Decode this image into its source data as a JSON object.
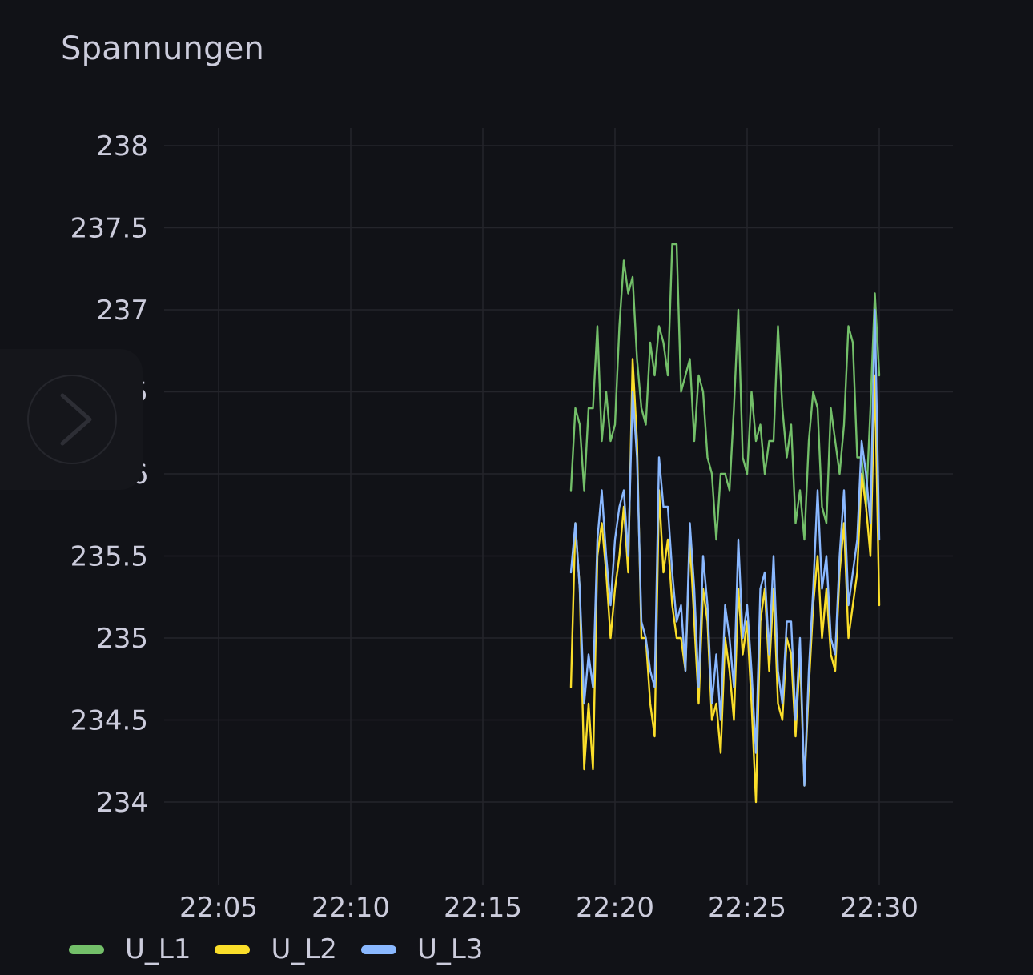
{
  "panel": {
    "title": "Spannungen"
  },
  "colors": {
    "background": "#111217",
    "grid": "#24252b",
    "text": "#ccccdc"
  },
  "nav": {
    "icon": "chevron-right-icon"
  },
  "chart_data": {
    "type": "line",
    "title": "Spannungen",
    "xlabel": "",
    "ylabel": "",
    "x_ticks": [
      "22:05",
      "22:10",
      "22:15",
      "22:20",
      "22:25",
      "22:30"
    ],
    "x_range": [
      "22:02:05",
      "22:32:47"
    ],
    "y_ticks": [
      "234",
      "234.5",
      "235",
      "235.5",
      "236",
      "236.5",
      "237",
      "237.5",
      "238"
    ],
    "ylim": [
      233.5,
      238
    ],
    "grid": true,
    "legend_position": "bottom-left",
    "series": [
      {
        "name": "U_L1",
        "color": "#73bf69",
        "x": [
          "22:18:20",
          "22:18:30",
          "22:18:40",
          "22:18:50",
          "22:19:00",
          "22:19:10",
          "22:19:20",
          "22:19:30",
          "22:19:40",
          "22:19:50",
          "22:20:00",
          "22:20:10",
          "22:20:20",
          "22:20:30",
          "22:20:40",
          "22:20:50",
          "22:21:00",
          "22:21:10",
          "22:21:20",
          "22:21:30",
          "22:21:40",
          "22:21:50",
          "22:22:00",
          "22:22:10",
          "22:22:20",
          "22:22:30",
          "22:22:40",
          "22:22:50",
          "22:23:00",
          "22:23:10",
          "22:23:20",
          "22:23:30",
          "22:23:40",
          "22:23:50",
          "22:24:00",
          "22:24:10",
          "22:24:20",
          "22:24:30",
          "22:24:40",
          "22:24:50",
          "22:25:00",
          "22:25:10",
          "22:25:20",
          "22:25:30",
          "22:25:40",
          "22:25:50",
          "22:26:00",
          "22:26:10",
          "22:26:20",
          "22:26:30",
          "22:26:40",
          "22:26:50",
          "22:27:00",
          "22:27:10",
          "22:27:20",
          "22:27:30",
          "22:27:40",
          "22:27:50",
          "22:28:00",
          "22:28:10",
          "22:28:20",
          "22:28:30",
          "22:28:40",
          "22:28:50",
          "22:29:00",
          "22:29:10",
          "22:29:20",
          "22:29:30",
          "22:29:40",
          "22:29:50",
          "22:30:00"
        ],
        "values": [
          235.9,
          236.4,
          236.3,
          235.9,
          236.4,
          236.4,
          236.9,
          236.2,
          236.5,
          236.2,
          236.3,
          236.9,
          237.3,
          237.1,
          237.2,
          236.7,
          236.4,
          236.3,
          236.8,
          236.6,
          236.9,
          236.8,
          236.6,
          237.4,
          237.4,
          236.5,
          236.6,
          236.7,
          236.2,
          236.6,
          236.5,
          236.1,
          236.0,
          235.6,
          236.0,
          236.0,
          235.9,
          236.4,
          237.0,
          236.1,
          236.0,
          236.5,
          236.2,
          236.3,
          236.0,
          236.2,
          236.2,
          236.9,
          236.4,
          236.1,
          236.3,
          235.7,
          235.9,
          235.6,
          236.2,
          236.5,
          236.4,
          235.8,
          235.7,
          236.4,
          236.2,
          236.0,
          236.3,
          236.9,
          236.8,
          236.1,
          236.1,
          235.8,
          236.4,
          237.1,
          236.6
        ],
        "note_values_approx": true
      },
      {
        "name": "U_L2",
        "color": "#fade2a",
        "x": [
          "22:18:20",
          "22:18:30",
          "22:18:40",
          "22:18:50",
          "22:19:00",
          "22:19:10",
          "22:19:20",
          "22:19:30",
          "22:19:40",
          "22:19:50",
          "22:20:00",
          "22:20:10",
          "22:20:20",
          "22:20:30",
          "22:20:40",
          "22:20:50",
          "22:21:00",
          "22:21:10",
          "22:21:20",
          "22:21:30",
          "22:21:40",
          "22:21:50",
          "22:22:00",
          "22:22:10",
          "22:22:20",
          "22:22:30",
          "22:22:40",
          "22:22:50",
          "22:23:00",
          "22:23:10",
          "22:23:20",
          "22:23:30",
          "22:23:40",
          "22:23:50",
          "22:24:00",
          "22:24:10",
          "22:24:20",
          "22:24:30",
          "22:24:40",
          "22:24:50",
          "22:25:00",
          "22:25:10",
          "22:25:20",
          "22:25:30",
          "22:25:40",
          "22:25:50",
          "22:26:00",
          "22:26:10",
          "22:26:20",
          "22:26:30",
          "22:26:40",
          "22:26:50",
          "22:27:00",
          "22:27:10",
          "22:27:20",
          "22:27:30",
          "22:27:40",
          "22:27:50",
          "22:28:00",
          "22:28:10",
          "22:28:20",
          "22:28:30",
          "22:28:40",
          "22:28:50",
          "22:29:00",
          "22:29:10",
          "22:29:20",
          "22:29:30",
          "22:29:40",
          "22:29:50",
          "22:30:00"
        ],
        "values": [
          234.7,
          235.7,
          235.3,
          234.2,
          234.6,
          234.2,
          235.5,
          235.7,
          235.4,
          235.0,
          235.3,
          235.5,
          235.8,
          235.4,
          236.7,
          236.2,
          235.0,
          235.0,
          234.6,
          234.4,
          235.9,
          235.4,
          235.6,
          235.2,
          235.0,
          235.0,
          234.8,
          235.6,
          235.1,
          234.6,
          235.3,
          235.1,
          234.5,
          234.6,
          234.3,
          235.0,
          234.8,
          234.5,
          235.3,
          234.9,
          235.1,
          234.6,
          234.0,
          235.1,
          235.3,
          234.8,
          235.3,
          234.6,
          234.5,
          235.0,
          234.9,
          234.4,
          234.9,
          234.1,
          234.7,
          235.2,
          235.5,
          235.0,
          235.3,
          234.9,
          234.8,
          235.4,
          235.7,
          235.0,
          235.2,
          235.4,
          236.0,
          235.8,
          235.5,
          236.6,
          235.2
        ],
        "note_values_approx": true
      },
      {
        "name": "U_L3",
        "color": "#8ab8ff",
        "x": [
          "22:18:20",
          "22:18:30",
          "22:18:40",
          "22:18:50",
          "22:19:00",
          "22:19:10",
          "22:19:20",
          "22:19:30",
          "22:19:40",
          "22:19:50",
          "22:20:00",
          "22:20:10",
          "22:20:20",
          "22:20:30",
          "22:20:40",
          "22:20:50",
          "22:21:00",
          "22:21:10",
          "22:21:20",
          "22:21:30",
          "22:21:40",
          "22:21:50",
          "22:22:00",
          "22:22:10",
          "22:22:20",
          "22:22:30",
          "22:22:40",
          "22:22:50",
          "22:23:00",
          "22:23:10",
          "22:23:20",
          "22:23:30",
          "22:23:40",
          "22:23:50",
          "22:24:00",
          "22:24:10",
          "22:24:20",
          "22:24:30",
          "22:24:40",
          "22:24:50",
          "22:25:00",
          "22:25:10",
          "22:25:20",
          "22:25:30",
          "22:25:40",
          "22:25:50",
          "22:26:00",
          "22:26:10",
          "22:26:20",
          "22:26:30",
          "22:26:40",
          "22:26:50",
          "22:27:00",
          "22:27:10",
          "22:27:20",
          "22:27:30",
          "22:27:40",
          "22:27:50",
          "22:28:00",
          "22:28:10",
          "22:28:20",
          "22:28:30",
          "22:28:40",
          "22:28:50",
          "22:29:00",
          "22:29:10",
          "22:29:20",
          "22:29:30",
          "22:29:40",
          "22:29:50",
          "22:30:00"
        ],
        "values": [
          235.4,
          235.7,
          235.3,
          234.6,
          234.9,
          234.7,
          235.6,
          235.9,
          235.5,
          235.2,
          235.6,
          235.8,
          235.9,
          235.5,
          236.5,
          236.1,
          235.1,
          235.0,
          234.8,
          234.7,
          236.1,
          235.8,
          235.8,
          235.4,
          235.1,
          235.2,
          234.8,
          235.7,
          235.3,
          234.7,
          235.5,
          235.2,
          234.6,
          234.9,
          234.5,
          235.2,
          235.0,
          234.7,
          235.6,
          235.0,
          235.2,
          234.8,
          234.3,
          235.3,
          235.4,
          234.9,
          235.5,
          234.8,
          234.6,
          235.1,
          235.1,
          234.5,
          235.0,
          234.1,
          234.8,
          235.3,
          235.9,
          235.3,
          235.5,
          235.0,
          234.9,
          235.5,
          235.9,
          235.2,
          235.4,
          235.6,
          236.2,
          236.0,
          235.7,
          237.0,
          235.6
        ],
        "note_values_approx": true
      }
    ]
  }
}
